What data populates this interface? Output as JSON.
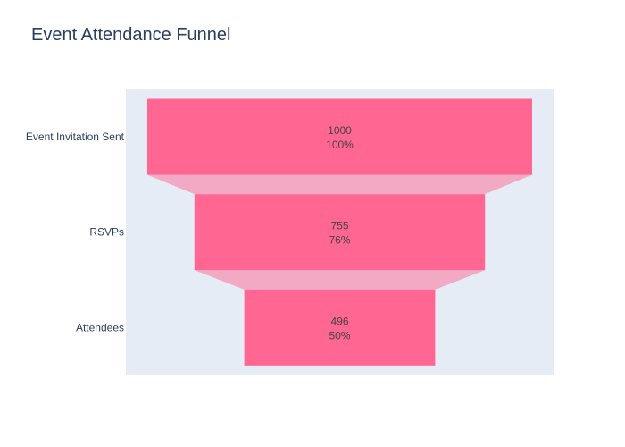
{
  "chart_data": {
    "type": "funnel",
    "title": "Event Attendance Funnel",
    "categories": [
      "Event Invitation Sent",
      "RSVPs",
      "Attendees"
    ],
    "values": [
      1000,
      755,
      496
    ],
    "percent_labels": [
      "100%",
      "76%",
      "50%"
    ],
    "grid": false,
    "colors": {
      "bar": "#ff6692",
      "connector": "#f2aac4",
      "plot_bg": "#e5ecf6"
    }
  }
}
